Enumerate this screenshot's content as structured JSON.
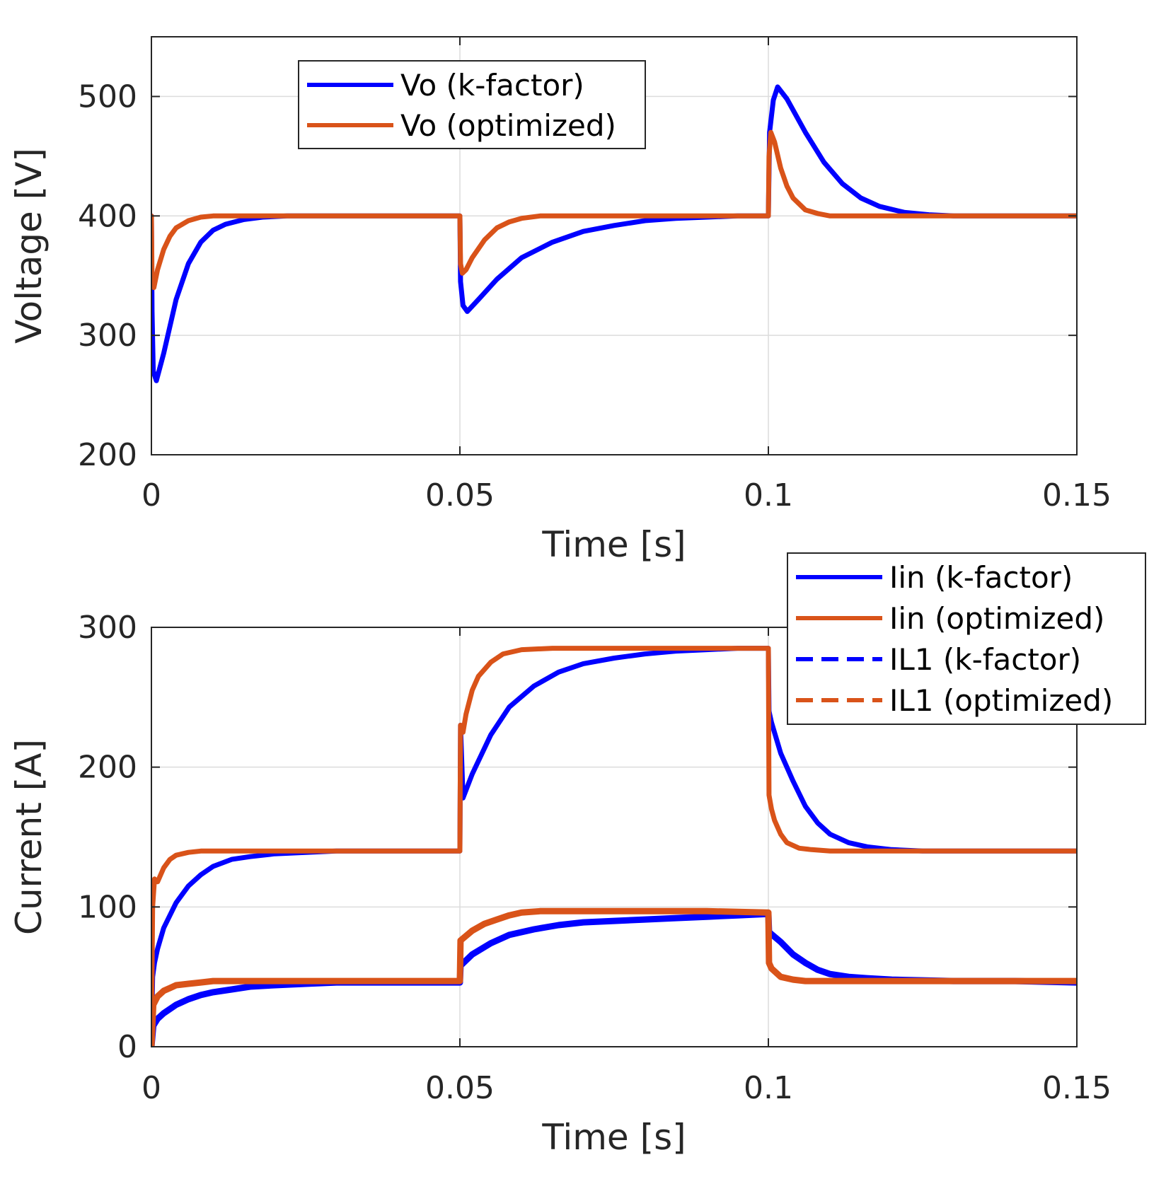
{
  "chart_data": [
    {
      "type": "line",
      "id": "voltage",
      "xlabel": "Time [s]",
      "ylabel": "Voltage [V]",
      "xlim": [
        0,
        0.15
      ],
      "ylim": [
        200,
        550
      ],
      "xticks": [
        0,
        0.05,
        0.1,
        0.15
      ],
      "xtick_labels": [
        "0",
        "0.05",
        "0.1",
        "0.15"
      ],
      "yticks": [
        200,
        300,
        400,
        500
      ],
      "ytick_labels": [
        "200",
        "300",
        "400",
        "500"
      ],
      "grid": true,
      "legend_position": "top-center",
      "series": [
        {
          "name": "Vo (k-factor)",
          "color": "#0000ff",
          "style": "solid",
          "x": [
            0,
            0.0001,
            0.0003,
            0.0008,
            0.002,
            0.004,
            0.006,
            0.008,
            0.01,
            0.012,
            0.015,
            0.018,
            0.022,
            0.026,
            0.03,
            0.04,
            0.0499,
            0.05,
            0.0501,
            0.0505,
            0.0512,
            0.053,
            0.056,
            0.06,
            0.065,
            0.07,
            0.075,
            0.08,
            0.085,
            0.09,
            0.095,
            0.0999,
            0.1,
            0.1002,
            0.1008,
            0.1015,
            0.103,
            0.106,
            0.109,
            0.112,
            0.115,
            0.118,
            0.122,
            0.126,
            0.13,
            0.14,
            0.15
          ],
          "values": [
            400,
            320,
            270,
            262,
            285,
            330,
            360,
            378,
            388,
            393,
            397,
            399,
            400,
            400,
            400,
            400,
            400,
            400,
            345,
            325,
            320,
            330,
            347,
            365,
            378,
            387,
            392,
            396,
            398,
            399,
            400,
            400,
            400,
            470,
            497,
            508,
            498,
            470,
            445,
            427,
            415,
            408,
            403,
            401,
            400,
            400,
            400
          ]
        },
        {
          "name": "Vo (optimized)",
          "color": "#d95319",
          "style": "solid",
          "x": [
            0,
            0.0001,
            0.0004,
            0.001,
            0.002,
            0.003,
            0.004,
            0.006,
            0.008,
            0.01,
            0.012,
            0.015,
            0.02,
            0.03,
            0.04,
            0.0499,
            0.05,
            0.0501,
            0.0504,
            0.051,
            0.052,
            0.054,
            0.056,
            0.058,
            0.06,
            0.063,
            0.07,
            0.08,
            0.09,
            0.0999,
            0.1,
            0.1001,
            0.1004,
            0.101,
            0.102,
            0.103,
            0.104,
            0.106,
            0.108,
            0.11,
            0.115,
            0.12,
            0.13,
            0.14,
            0.15
          ],
          "values": [
            400,
            345,
            340,
            355,
            372,
            383,
            390,
            396,
            399,
            400,
            400,
            400,
            400,
            400,
            400,
            400,
            400,
            360,
            352,
            355,
            365,
            380,
            390,
            395,
            398,
            400,
            400,
            400,
            400,
            400,
            400,
            450,
            470,
            462,
            440,
            425,
            415,
            405,
            402,
            400,
            400,
            400,
            400,
            400,
            400
          ]
        }
      ]
    },
    {
      "type": "line",
      "id": "current",
      "xlabel": "Time [s]",
      "ylabel": "Current [A]",
      "xlim": [
        0,
        0.15
      ],
      "ylim": [
        0,
        300
      ],
      "xticks": [
        0,
        0.05,
        0.1,
        0.15
      ],
      "xtick_labels": [
        "0",
        "0.05",
        "0.1",
        "0.15"
      ],
      "yticks": [
        0,
        100,
        200,
        300
      ],
      "ytick_labels": [
        "0",
        "100",
        "200",
        "300"
      ],
      "grid": true,
      "legend_position": "top-right",
      "series": [
        {
          "name": "Iin (k-factor)",
          "color": "#0000ff",
          "style": "solid",
          "x": [
            0,
            0.0002,
            0.0005,
            0.001,
            0.002,
            0.004,
            0.006,
            0.008,
            0.01,
            0.013,
            0.016,
            0.02,
            0.025,
            0.03,
            0.04,
            0.0499,
            0.05,
            0.0501,
            0.0505,
            0.052,
            0.055,
            0.058,
            0.062,
            0.066,
            0.07,
            0.075,
            0.08,
            0.085,
            0.09,
            0.095,
            0.0999,
            0.1,
            0.1001,
            0.1005,
            0.102,
            0.104,
            0.106,
            0.108,
            0.11,
            0.113,
            0.116,
            0.12,
            0.125,
            0.13,
            0.14,
            0.15
          ],
          "values": [
            0,
            50,
            60,
            70,
            85,
            103,
            115,
            123,
            129,
            134,
            136,
            138,
            139,
            140,
            140,
            140,
            140,
            230,
            178,
            195,
            223,
            243,
            258,
            268,
            274,
            278,
            281,
            283,
            284,
            285,
            285,
            285,
            240,
            232,
            210,
            190,
            172,
            160,
            152,
            146,
            143,
            141,
            140,
            140,
            140,
            140
          ]
        },
        {
          "name": "Iin (optimized)",
          "color": "#d95319",
          "style": "solid",
          "x": [
            0,
            0.0002,
            0.0005,
            0.001,
            0.002,
            0.003,
            0.004,
            0.006,
            0.008,
            0.01,
            0.015,
            0.02,
            0.03,
            0.04,
            0.0499,
            0.05,
            0.0501,
            0.0505,
            0.051,
            0.052,
            0.053,
            0.055,
            0.057,
            0.06,
            0.065,
            0.07,
            0.08,
            0.09,
            0.0999,
            0.1,
            0.1001,
            0.1005,
            0.101,
            0.102,
            0.103,
            0.105,
            0.107,
            0.11,
            0.115,
            0.12,
            0.13,
            0.14,
            0.15
          ],
          "values": [
            0,
            100,
            120,
            118,
            128,
            134,
            137,
            139,
            140,
            140,
            140,
            140,
            140,
            140,
            140,
            140,
            230,
            225,
            238,
            255,
            265,
            275,
            281,
            284,
            285,
            285,
            285,
            285,
            285,
            285,
            180,
            170,
            162,
            152,
            146,
            142,
            141,
            140,
            140,
            140,
            140,
            140,
            140
          ]
        },
        {
          "name": "IL1 (k-factor)",
          "color": "#0000ff",
          "style": "dashed",
          "x": [
            0,
            0.0003,
            0.001,
            0.002,
            0.004,
            0.006,
            0.008,
            0.01,
            0.013,
            0.016,
            0.02,
            0.025,
            0.03,
            0.04,
            0.0499,
            0.05,
            0.0501,
            0.052,
            0.055,
            0.058,
            0.062,
            0.066,
            0.07,
            0.075,
            0.08,
            0.085,
            0.09,
            0.095,
            0.0999,
            0.1,
            0.1001,
            0.102,
            0.104,
            0.106,
            0.108,
            0.11,
            0.113,
            0.116,
            0.12,
            0.13,
            0.14,
            0.15
          ],
          "values": [
            0,
            15,
            20,
            24,
            30,
            34,
            37,
            39,
            41,
            43,
            44,
            45,
            46,
            46,
            46,
            46,
            58,
            66,
            74,
            80,
            84,
            87,
            89,
            90,
            91,
            92,
            93,
            94,
            95,
            95,
            82,
            75,
            66,
            60,
            55,
            52,
            50,
            49,
            48,
            47,
            47,
            46
          ]
        },
        {
          "name": "IL1 (optimized)",
          "color": "#d95319",
          "style": "dashed",
          "x": [
            0,
            0.0003,
            0.001,
            0.002,
            0.003,
            0.004,
            0.006,
            0.008,
            0.01,
            0.015,
            0.02,
            0.03,
            0.04,
            0.0499,
            0.05,
            0.0501,
            0.052,
            0.054,
            0.056,
            0.058,
            0.06,
            0.063,
            0.07,
            0.08,
            0.09,
            0.0999,
            0.1,
            0.1001,
            0.1005,
            0.102,
            0.104,
            0.106,
            0.11,
            0.12,
            0.13,
            0.14,
            0.15
          ],
          "values": [
            0,
            30,
            36,
            40,
            42,
            44,
            45,
            46,
            47,
            47,
            47,
            47,
            47,
            47,
            47,
            76,
            83,
            88,
            91,
            94,
            96,
            97,
            97,
            97,
            97,
            96,
            96,
            60,
            56,
            50,
            48,
            47,
            47,
            47,
            47,
            47,
            47
          ]
        }
      ]
    }
  ]
}
